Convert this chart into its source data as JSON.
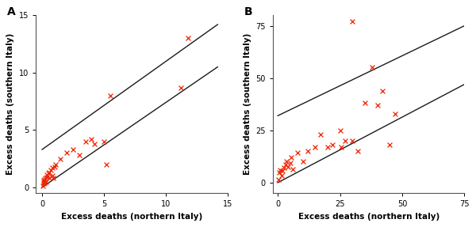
{
  "panel_A": {
    "label": "A",
    "scatter_x": [
      0.05,
      0.1,
      0.12,
      0.15,
      0.18,
      0.2,
      0.25,
      0.3,
      0.35,
      0.4,
      0.5,
      0.55,
      0.6,
      0.7,
      0.8,
      0.85,
      0.9,
      1.0,
      1.1,
      1.5,
      2.0,
      2.5,
      3.0,
      3.5,
      4.0,
      4.2,
      5.0,
      5.2,
      5.5,
      11.2,
      11.8
    ],
    "scatter_y": [
      0.1,
      0.3,
      0.5,
      0.6,
      0.7,
      0.4,
      0.8,
      0.5,
      0.9,
      1.1,
      1.2,
      0.8,
      1.3,
      1.5,
      1.7,
      1.0,
      0.8,
      1.8,
      2.0,
      2.5,
      3.0,
      3.3,
      2.8,
      4.0,
      4.2,
      3.8,
      4.0,
      2.0,
      8.0,
      8.7,
      13.0
    ],
    "line1_x": [
      0,
      14.2
    ],
    "line1_y": [
      3.3,
      14.2
    ],
    "line2_x": [
      0,
      14.2
    ],
    "line2_y": [
      0,
      10.5
    ],
    "xlim": [
      -0.5,
      15
    ],
    "ylim": [
      -0.5,
      15
    ],
    "xticks": [
      0,
      5,
      10,
      15
    ],
    "yticks": [
      0,
      5,
      10,
      15
    ],
    "xlabel": "Excess deaths (northern Italy)",
    "ylabel": "Excess deaths (southern Italy)"
  },
  "panel_B": {
    "label": "B",
    "scatter_x": [
      0.2,
      0.5,
      1.0,
      1.5,
      2.0,
      2.5,
      3.0,
      3.5,
      4.0,
      5.0,
      5.5,
      6.0,
      8.0,
      10.0,
      12.0,
      15.0,
      17.0,
      20.0,
      22.0,
      25.0,
      25.5,
      27.0,
      30.0,
      32.0,
      35.0,
      38.0,
      40.0,
      42.0,
      45.0,
      47.0,
      30.0
    ],
    "scatter_y": [
      1.5,
      5.0,
      6.0,
      3.5,
      5.5,
      7.0,
      8.5,
      10.0,
      7.5,
      9.5,
      12.0,
      6.5,
      14.5,
      10.0,
      15.0,
      17.0,
      23.0,
      17.0,
      18.0,
      25.0,
      17.0,
      20.0,
      77.0,
      15.0,
      38.0,
      55.0,
      37.0,
      44.0,
      18.0,
      33.0,
      20.0
    ],
    "line1_x": [
      0,
      75
    ],
    "line1_y": [
      32,
      75
    ],
    "line2_x": [
      0,
      75
    ],
    "line2_y": [
      0,
      47
    ],
    "xlim": [
      -2,
      75
    ],
    "ylim": [
      -5,
      80
    ],
    "xticks": [
      0,
      25,
      50,
      75
    ],
    "yticks": [
      0,
      25,
      50,
      75
    ],
    "xlabel": "Excess deaths (northern Italy)",
    "ylabel": "Excess deaths (southern Italy)"
  },
  "scatter_color": "#ee2200",
  "line_color": "#1a1a1a",
  "marker": "x",
  "marker_size": 18,
  "marker_lw": 0.9,
  "line_width": 1.0,
  "bg_color": "#ffffff",
  "label_fontsize": 7.5,
  "tick_fontsize": 7,
  "panel_label_fontsize": 10,
  "spine_color": "#555555"
}
